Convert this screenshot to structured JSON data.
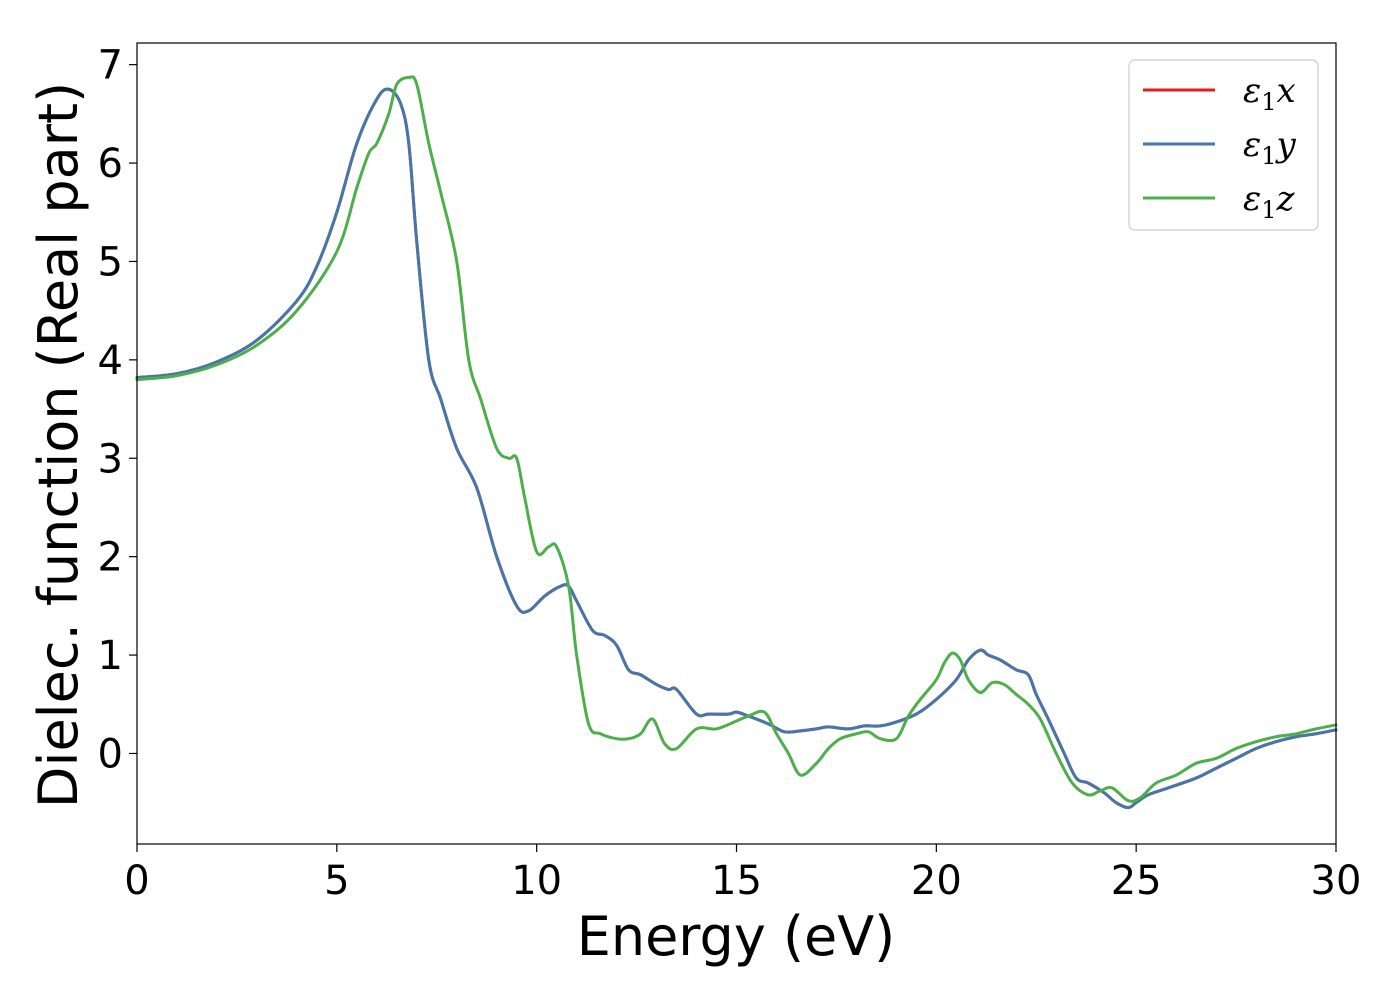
{
  "chart_data": {
    "type": "line",
    "title": "",
    "xlabel": "Energy (eV)",
    "ylabel": "Dielec. function (Real part)",
    "xlim": [
      0,
      30
    ],
    "ylim": [
      -0.92,
      7.22
    ],
    "xticks": [
      0,
      5,
      10,
      15,
      20,
      25,
      30
    ],
    "yticks": [
      0,
      1,
      2,
      3,
      4,
      5,
      6,
      7
    ],
    "grid": false,
    "legend_position": "top-right",
    "series": [
      {
        "name": "ε1x",
        "symbol": "ε",
        "subscript": "1",
        "axis": "x",
        "color": "#e41a1c",
        "x": [
          0,
          1,
          2,
          3,
          4,
          4.5,
          5,
          5.5,
          6,
          6.3,
          6.6,
          6.8,
          7.0,
          7.3,
          7.6,
          8.0,
          8.5,
          9.0,
          9.5,
          9.8,
          10.2,
          10.6,
          10.8,
          11.0,
          11.4,
          11.7,
          12.0,
          12.3,
          12.6,
          13.0,
          13.3,
          13.5,
          14.0,
          14.3,
          14.8,
          15.0,
          15.3,
          15.8,
          16.2,
          16.6,
          17.0,
          17.3,
          17.8,
          18.2,
          18.6,
          19.0,
          19.5,
          20.0,
          20.5,
          20.8,
          21.1,
          21.3,
          21.6,
          22.0,
          22.3,
          22.5,
          22.8,
          23.2,
          23.5,
          23.8,
          24.2,
          24.5,
          24.8,
          25.0,
          25.3,
          25.8,
          26.5,
          27.0,
          27.5,
          28.0,
          28.5,
          29.0,
          29.5,
          30.0
        ],
        "y": [
          3.82,
          3.86,
          3.98,
          4.2,
          4.6,
          4.95,
          5.5,
          6.2,
          6.65,
          6.75,
          6.6,
          6.2,
          5.2,
          4.0,
          3.6,
          3.1,
          2.7,
          2.0,
          1.5,
          1.45,
          1.6,
          1.7,
          1.7,
          1.55,
          1.25,
          1.2,
          1.1,
          0.85,
          0.8,
          0.7,
          0.65,
          0.65,
          0.4,
          0.4,
          0.4,
          0.42,
          0.38,
          0.3,
          0.22,
          0.23,
          0.25,
          0.27,
          0.25,
          0.28,
          0.28,
          0.32,
          0.4,
          0.55,
          0.75,
          0.95,
          1.05,
          1.0,
          0.95,
          0.85,
          0.8,
          0.6,
          0.35,
          0.0,
          -0.25,
          -0.3,
          -0.4,
          -0.5,
          -0.55,
          -0.5,
          -0.42,
          -0.35,
          -0.25,
          -0.15,
          -0.05,
          0.05,
          0.12,
          0.17,
          0.2,
          0.24
        ]
      },
      {
        "name": "ε1y",
        "symbol": "ε",
        "subscript": "1",
        "axis": "y",
        "color": "#4477aa",
        "x": [
          0,
          1,
          2,
          3,
          4,
          4.5,
          5,
          5.5,
          6,
          6.3,
          6.6,
          6.8,
          7.0,
          7.3,
          7.6,
          8.0,
          8.5,
          9.0,
          9.5,
          9.8,
          10.2,
          10.6,
          10.8,
          11.0,
          11.4,
          11.7,
          12.0,
          12.3,
          12.6,
          13.0,
          13.3,
          13.5,
          14.0,
          14.3,
          14.8,
          15.0,
          15.3,
          15.8,
          16.2,
          16.6,
          17.0,
          17.3,
          17.8,
          18.2,
          18.6,
          19.0,
          19.5,
          20.0,
          20.5,
          20.8,
          21.1,
          21.3,
          21.6,
          22.0,
          22.3,
          22.5,
          22.8,
          23.2,
          23.5,
          23.8,
          24.2,
          24.5,
          24.8,
          25.0,
          25.3,
          25.8,
          26.5,
          27.0,
          27.5,
          28.0,
          28.5,
          29.0,
          29.5,
          30.0
        ],
        "y": [
          3.82,
          3.86,
          3.98,
          4.2,
          4.6,
          4.95,
          5.5,
          6.2,
          6.65,
          6.75,
          6.6,
          6.2,
          5.2,
          4.0,
          3.6,
          3.1,
          2.7,
          2.0,
          1.5,
          1.45,
          1.6,
          1.7,
          1.7,
          1.55,
          1.25,
          1.2,
          1.1,
          0.85,
          0.8,
          0.7,
          0.65,
          0.65,
          0.4,
          0.4,
          0.4,
          0.42,
          0.38,
          0.3,
          0.22,
          0.23,
          0.25,
          0.27,
          0.25,
          0.28,
          0.28,
          0.32,
          0.4,
          0.55,
          0.75,
          0.95,
          1.05,
          1.0,
          0.95,
          0.85,
          0.8,
          0.6,
          0.35,
          0.0,
          -0.25,
          -0.3,
          -0.4,
          -0.5,
          -0.55,
          -0.5,
          -0.42,
          -0.35,
          -0.25,
          -0.15,
          -0.05,
          0.05,
          0.12,
          0.17,
          0.2,
          0.24
        ]
      },
      {
        "name": "ε1z",
        "symbol": "ε",
        "subscript": "1",
        "axis": "z",
        "color": "#4daf4a",
        "x": [
          0,
          1,
          2,
          3,
          4,
          5,
          5.5,
          5.8,
          6.0,
          6.3,
          6.5,
          6.8,
          7.0,
          7.3,
          7.6,
          8.0,
          8.3,
          8.6,
          9.0,
          9.3,
          9.5,
          9.7,
          10.0,
          10.3,
          10.5,
          10.8,
          11.0,
          11.3,
          11.6,
          12.0,
          12.3,
          12.6,
          12.9,
          13.2,
          13.5,
          14.0,
          14.5,
          15.0,
          15.3,
          15.7,
          16.0,
          16.3,
          16.6,
          17.0,
          17.3,
          17.6,
          18.0,
          18.3,
          18.6,
          19.0,
          19.3,
          19.6,
          20.0,
          20.2,
          20.4,
          20.6,
          20.8,
          21.1,
          21.4,
          21.7,
          22.0,
          22.3,
          22.6,
          23.0,
          23.4,
          23.8,
          24.1,
          24.4,
          24.8,
          25.1,
          25.5,
          26.0,
          26.5,
          27.0,
          27.5,
          28.0,
          28.5,
          29.0,
          29.5,
          30.0
        ],
        "y": [
          3.8,
          3.84,
          3.95,
          4.15,
          4.5,
          5.1,
          5.75,
          6.1,
          6.2,
          6.5,
          6.8,
          6.87,
          6.8,
          6.2,
          5.7,
          5.0,
          4.0,
          3.6,
          3.1,
          3.0,
          3.0,
          2.6,
          2.05,
          2.1,
          2.1,
          1.7,
          1.0,
          0.3,
          0.2,
          0.15,
          0.15,
          0.2,
          0.35,
          0.1,
          0.05,
          0.25,
          0.25,
          0.33,
          0.38,
          0.42,
          0.2,
          0.0,
          -0.22,
          -0.1,
          0.05,
          0.15,
          0.2,
          0.22,
          0.15,
          0.15,
          0.38,
          0.55,
          0.75,
          0.92,
          1.02,
          0.95,
          0.75,
          0.62,
          0.72,
          0.7,
          0.6,
          0.5,
          0.35,
          0.0,
          -0.3,
          -0.42,
          -0.38,
          -0.35,
          -0.48,
          -0.45,
          -0.3,
          -0.22,
          -0.1,
          -0.05,
          0.05,
          0.12,
          0.17,
          0.2,
          0.25,
          0.29
        ]
      }
    ]
  }
}
